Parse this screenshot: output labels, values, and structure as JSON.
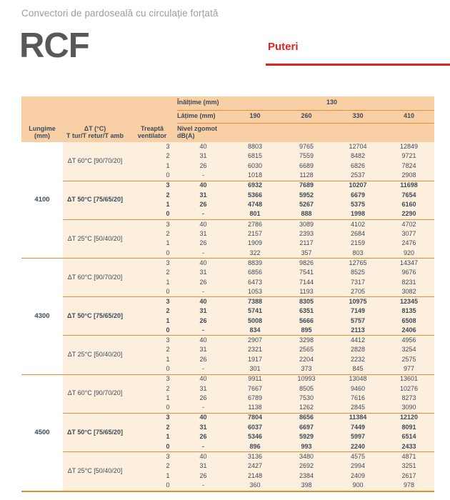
{
  "page": {
    "subtitle": "Convectori de pardoseală cu circulație forțată",
    "model": "RCF",
    "section_label": "Puteri"
  },
  "colors": {
    "accent_red": "#e2231d",
    "header_bg": "#f9d0a6",
    "body_bg": "#fdefdd",
    "line_orange": "#e88c35",
    "text_dark": "#3e4a59",
    "subtitle_gray": "#9d9d9c",
    "model_gray": "#58585a"
  },
  "table": {
    "header": {
      "inaltime_label": "Înălțime (mm)",
      "inaltime_value": "130",
      "latime_label": "Lățime (mm)",
      "widths": [
        "190",
        "260",
        "330",
        "410"
      ],
      "lungime_label": "Lungime\n(mm)",
      "dt_label": "ΔT (°C)\nT tur/T retur/T amb",
      "treapta_label": "Treaptă\nventilator",
      "zgomot_label": "Nivel zgomot\ndB(A)"
    },
    "fan_steps": [
      "3",
      "2",
      "1",
      "0"
    ],
    "noise_levels": [
      "40",
      "31",
      "26",
      "-"
    ],
    "groups": [
      {
        "length": "4100",
        "blocks": [
          {
            "dt_label": "ΔT 60°C [90/70/20]",
            "bold": false,
            "rows": [
              [
                8803,
                9765,
                12704,
                12849
              ],
              [
                6815,
                7559,
                8482,
                9721
              ],
              [
                6030,
                6689,
                6826,
                7824
              ],
              [
                1018,
                1128,
                2537,
                2908
              ]
            ]
          },
          {
            "dt_label": "ΔT 50°C [75/65/20]",
            "bold": true,
            "rows": [
              [
                6932,
                7689,
                10207,
                11698
              ],
              [
                5366,
                5952,
                6679,
                7654
              ],
              [
                4748,
                5267,
                5375,
                6160
              ],
              [
                801,
                888,
                1998,
                2290
              ]
            ]
          },
          {
            "dt_label": "ΔT 25°C [50/40/20]",
            "bold": false,
            "rows": [
              [
                2786,
                3089,
                4102,
                4702
              ],
              [
                2157,
                2393,
                2684,
                3077
              ],
              [
                1909,
                2117,
                2159,
                2476
              ],
              [
                322,
                357,
                803,
                920
              ]
            ]
          }
        ]
      },
      {
        "length": "4300",
        "blocks": [
          {
            "dt_label": "ΔT 60°C [90/70/20]",
            "bold": false,
            "rows": [
              [
                8839,
                9826,
                12765,
                14347
              ],
              [
                6856,
                7541,
                8525,
                9676
              ],
              [
                6473,
                7144,
                7317,
                8231
              ],
              [
                1053,
                1193,
                2705,
                3082
              ]
            ]
          },
          {
            "dt_label": "ΔT 50°C [75/65/20]",
            "bold": true,
            "rows": [
              [
                7388,
                8305,
                10975,
                12345
              ],
              [
                5741,
                6351,
                7149,
                8135
              ],
              [
                5008,
                5666,
                5757,
                6508
              ],
              [
                834,
                895,
                2113,
                2406
              ]
            ]
          },
          {
            "dt_label": "ΔT 25°C [50/40/20]",
            "bold": false,
            "rows": [
              [
                2907,
                3298,
                4412,
                4956
              ],
              [
                2321,
                2565,
                2828,
                3254
              ],
              [
                1917,
                2204,
                2232,
                2575
              ],
              [
                301,
                373,
                845,
                977
              ]
            ]
          }
        ]
      },
      {
        "length": "4500",
        "blocks": [
          {
            "dt_label": "ΔT 60°C [90/70/20]",
            "bold": false,
            "rows": [
              [
                9911,
                10993,
                13048,
                13601
              ],
              [
                7667,
                8505,
                9460,
                10276
              ],
              [
                6789,
                7530,
                7616,
                8273
              ],
              [
                1138,
                1262,
                2845,
                3090
              ]
            ]
          },
          {
            "dt_label": "ΔT 50°C [75/65/20]",
            "bold": true,
            "rows": [
              [
                7804,
                8656,
                11384,
                12120
              ],
              [
                6037,
                6697,
                7449,
                8091
              ],
              [
                5346,
                5929,
                5997,
                6514
              ],
              [
                896,
                993,
                2240,
                2433
              ]
            ]
          },
          {
            "dt_label": "ΔT 25°C [50/40/20]",
            "bold": false,
            "rows": [
              [
                3136,
                3480,
                4575,
                4871
              ],
              [
                2427,
                2692,
                2994,
                3251
              ],
              [
                2148,
                2384,
                2409,
                2617
              ],
              [
                360,
                398,
                900,
                978
              ]
            ]
          }
        ]
      }
    ]
  }
}
